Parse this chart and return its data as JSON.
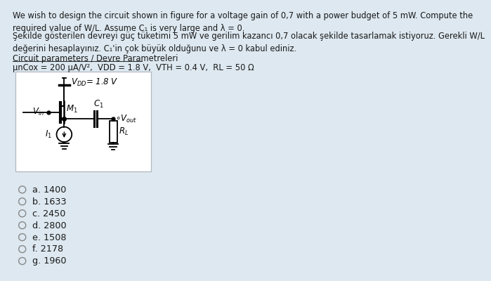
{
  "background_color": "#dde8f0",
  "text_color": "#1a1a1a",
  "title_en": "We wish to design the circuit shown in figure for a voltage gain of 0,7 with a power budget of 5 mW. Compute the\nrequired value of W/L. Assume C₁ is very large and λ = 0.",
  "title_tr": "Şekilde gösterilen devreyi güç tüketimi 5 mW ve gerilim kazancı 0,7 olacak şekilde tasarlamak istiyoruz. Gerekli W/L\ndeğerini hesaplayınız. C₁'in çok büyük olduğunu ve λ = 0 kabul ediniz.",
  "section_label": "Circuit parameters / Devre Parametreleri",
  "params_line": "μnCox = 200 μA/V²,  VDD = 1.8 V,  VTH = 0.4 V,  RL = 50 Ω",
  "choices": [
    "a. 1400",
    "b. 1633",
    "c. 2450",
    "d. 2800",
    "e. 1508",
    "f. 2178",
    "g. 1960"
  ]
}
